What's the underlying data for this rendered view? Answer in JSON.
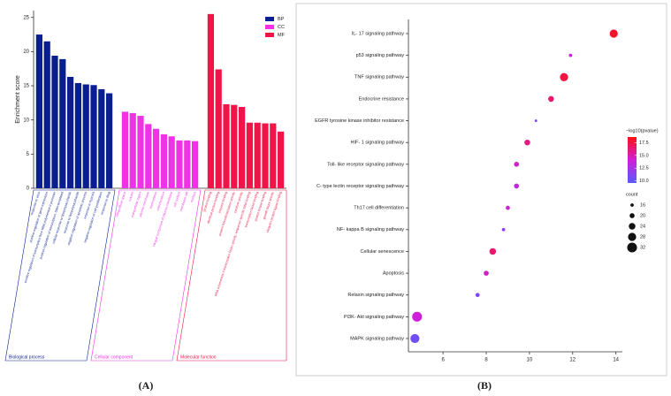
{
  "chart_data": [
    {
      "type": "bar",
      "y_label": "Enrichment score",
      "caption": "(A)",
      "ylim": [
        0,
        26
      ],
      "yticks": [
        0,
        5,
        10,
        15,
        20,
        25
      ],
      "series": [
        {
          "name": "BP",
          "group_label": "Biological process",
          "color": "#0a1f8f",
          "categories": [
            "response to virus",
            "positive regulation of gene expression",
            "positive regulation of transcription from RNA polymerase II promoter",
            "positive regulation of transcription, DNA-templated",
            "cellular response to lipopolysaccharide",
            "response to lipopolysaccharide",
            "negative regulation of apoptotic process",
            "response to hypoxia",
            "negative regulation of cell proliferation",
            "response to drug"
          ],
          "values": [
            22.5,
            21.5,
            19.4,
            18.9,
            16.3,
            15.4,
            15.2,
            15.1,
            14.5,
            13.9
          ]
        },
        {
          "name": "CC",
          "group_label": "Cellular component",
          "color": "#f032e6",
          "categories": [
            "extracellular space",
            "cytosol",
            "extracellular region",
            "plasma membrane",
            "nucleoplasm",
            "mitochondrion",
            "integral component of plasma membrane",
            "cell surface",
            "membrane raft",
            "nucleus"
          ],
          "values": [
            11.2,
            11.0,
            10.6,
            9.4,
            8.7,
            7.9,
            7.6,
            7.0,
            7.0,
            6.9
          ]
        },
        {
          "name": "MF",
          "group_label": "Molecular function",
          "color": "#f01448",
          "categories": [
            "protein binding",
            "identical protein binding",
            "enzyme binding",
            "protein homodimerization activity",
            "cytokine activity",
            "RNA polymerase II transcription factor activity, sequence-specific DNA binding",
            "transcription factor binding",
            "protein kinase binding",
            "growth factor activity",
            "ubiquitin protein ligase binding"
          ],
          "values": [
            25.5,
            17.4,
            12.3,
            12.2,
            11.9,
            9.6,
            9.6,
            9.5,
            9.5,
            8.3
          ]
        }
      ]
    },
    {
      "type": "bubble",
      "caption": "(B)",
      "categories": [
        "IL- 17 signaling pathway",
        "p53 signaling pathway",
        "TNF signaling pathway",
        "Endocrine resistance",
        "EGFR tyrosine kinase inhibitor resistance",
        "HIF- 1 signaling pathway",
        "Toll- like receptor signaling pathway",
        "C- type lectin receptor signaling pathway",
        "Th17 cell differentiation",
        "NF- kappa B signaling pathway",
        "Cellular senescence",
        "Apoptosis",
        "Relaxin signaling pathway",
        "PI3K- Akt signaling pathway",
        "MAPK signaling pathway"
      ],
      "x": [
        13.9,
        11.9,
        11.6,
        11.0,
        10.3,
        9.9,
        9.4,
        9.4,
        9.0,
        8.8,
        8.3,
        8.0,
        7.6,
        4.8,
        4.7
      ],
      "size": [
        28,
        16,
        28,
        22,
        14,
        22,
        20,
        20,
        18,
        16,
        24,
        20,
        18,
        32,
        30
      ],
      "color_value": [
        18,
        14,
        17.5,
        16.5,
        11,
        16,
        14.5,
        13.5,
        14,
        11.5,
        16.5,
        14.5,
        11,
        14,
        10.5
      ],
      "xlim": [
        4.4,
        14.3
      ],
      "xticks": [
        6,
        8,
        10,
        12,
        14
      ],
      "color_title": "−log10(pvalue)",
      "clim": [
        9.6,
        18.6
      ],
      "colormap": [
        "#5a5aff",
        "#d020d8",
        "#ff1010"
      ],
      "color_ticks": [
        {
          "value": 10,
          "label": "10.0"
        },
        {
          "value": 12.5,
          "label": "12.5"
        },
        {
          "value": 15,
          "label": "15.0"
        },
        {
          "value": 17.5,
          "label": "17.5"
        }
      ],
      "size_title": "count",
      "size_ticks": [
        16,
        20,
        24,
        28,
        32
      ]
    }
  ]
}
